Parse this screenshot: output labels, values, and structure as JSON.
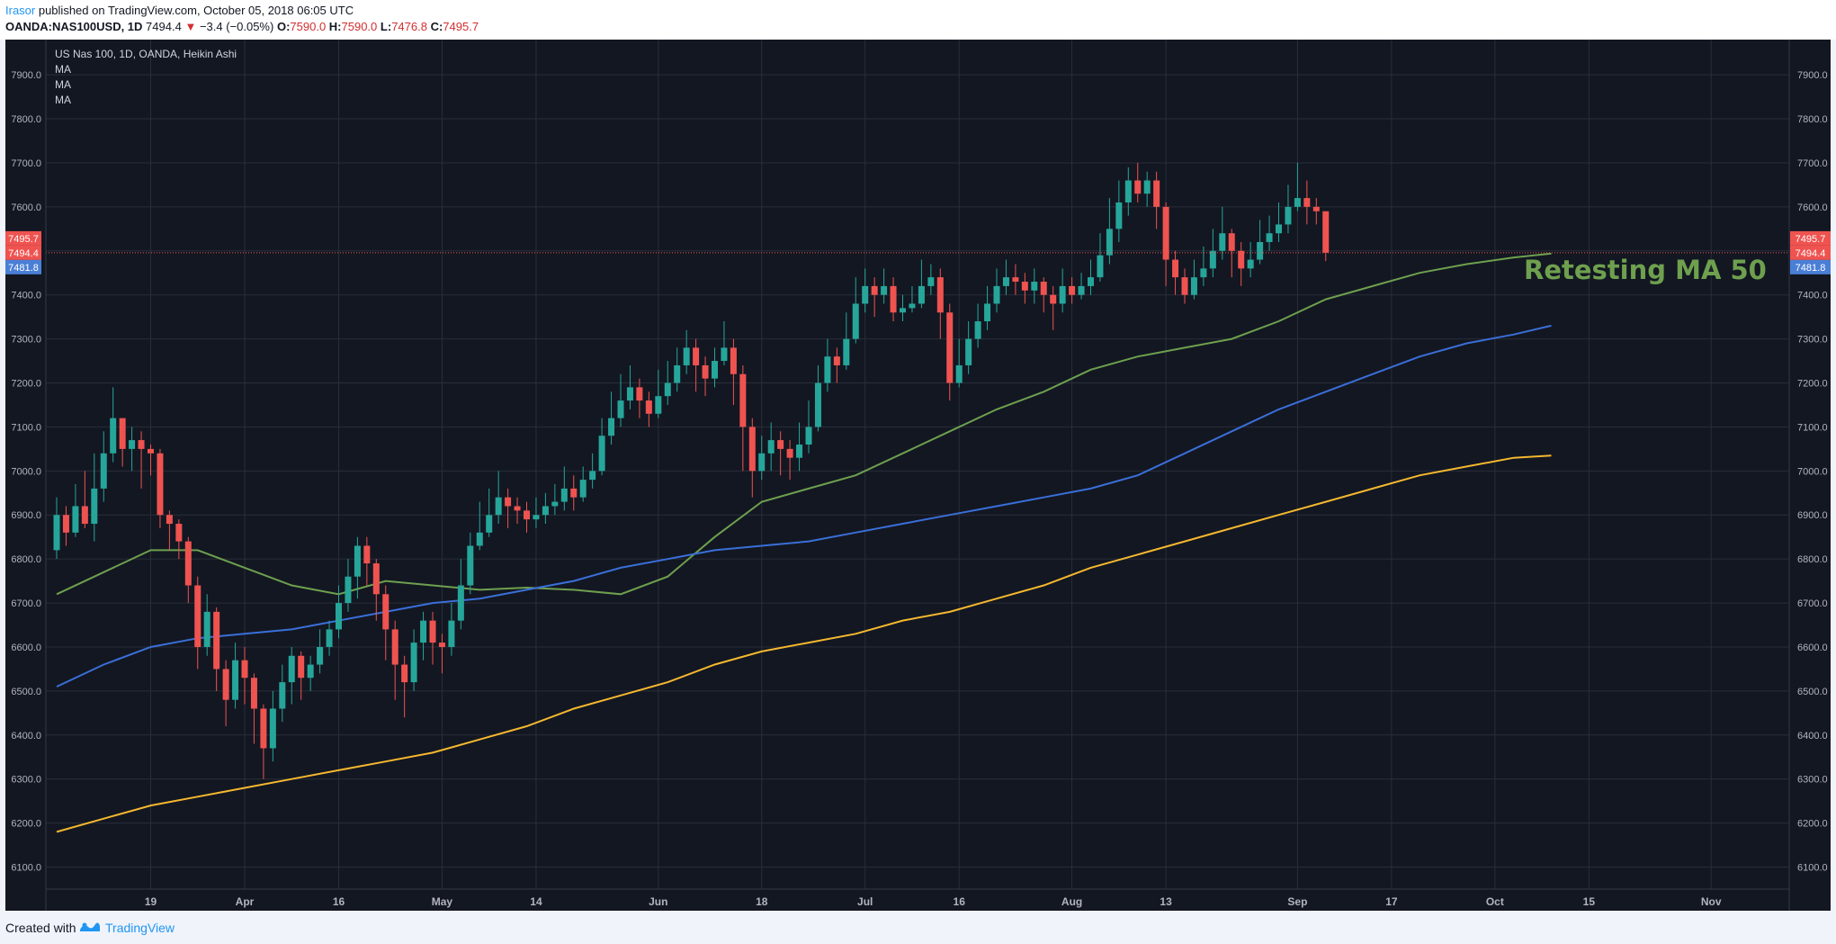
{
  "header": {
    "author": "Irasor",
    "published_text": " published on TradingView.com, October 05, 2018 06:05 UTC",
    "symbol": "OANDA:NAS100USD, 1D",
    "last": "7494.4",
    "change": "−3.4 (−0.05%)",
    "o_label": "O:",
    "o_value": "7590.0",
    "h_label": "H:",
    "h_value": "7590.0",
    "l_label": "L:",
    "l_value": "7476.8",
    "c_label": "C:",
    "c_value": "7495.7"
  },
  "legend": {
    "title": "US Nas 100, 1D, OANDA, Heikin Ashi",
    "ma1": "MA",
    "ma2": "MA",
    "ma3": "MA"
  },
  "annotation": {
    "text": "Retesting MA 50",
    "color": "#6ea04e"
  },
  "footer": {
    "created_with": "Created with",
    "brand": "TradingView"
  },
  "colors": {
    "background": "#131722",
    "grid": "#2a2e39",
    "up": "#26a69a",
    "down": "#ef5350",
    "ma50": "#6ea04e",
    "ma100": "#3a6fd8",
    "ma200": "#f5b82e",
    "axis_text": "#b2b5be",
    "price_line": "#ef5350",
    "tag_blue": "#4a7fd6"
  },
  "chart_data": {
    "type": "candlestick",
    "chart_style": "Heikin Ashi",
    "title": "US Nas 100, 1D, OANDA, Heikin Ashi",
    "ylim": [
      6050,
      7980
    ],
    "y_ticks": [
      "6100.0",
      "6200.0",
      "6300.0",
      "6400.0",
      "6500.0",
      "6600.0",
      "6700.0",
      "6800.0",
      "6900.0",
      "7000.0",
      "7100.0",
      "7200.0",
      "7300.0",
      "7400.0",
      "7500.0",
      "7600.0",
      "7700.0",
      "7800.0",
      "7900.0"
    ],
    "x_ticks": [
      {
        "label": "19",
        "index": 10
      },
      {
        "label": "Apr",
        "index": 20
      },
      {
        "label": "16",
        "index": 30
      },
      {
        "label": "May",
        "index": 41
      },
      {
        "label": "14",
        "index": 51
      },
      {
        "label": "Jun",
        "index": 64
      },
      {
        "label": "18",
        "index": 75
      },
      {
        "label": "Jul",
        "index": 86
      },
      {
        "label": "16",
        "index": 96
      },
      {
        "label": "Aug",
        "index": 108
      },
      {
        "label": "13",
        "index": 118
      },
      {
        "label": "Sep",
        "index": 132
      },
      {
        "label": "17",
        "index": 142
      },
      {
        "label": "Oct",
        "index": 153
      },
      {
        "label": "15",
        "index": 163
      },
      {
        "label": "Nov",
        "index": 176
      }
    ],
    "x_max_index": 186,
    "candles": [
      [
        6820,
        6900,
        6940,
        6800
      ],
      [
        6900,
        6860,
        6920,
        6830
      ],
      [
        6860,
        6920,
        6970,
        6850
      ],
      [
        6920,
        6880,
        7000,
        6870
      ],
      [
        6880,
        6960,
        7040,
        6840
      ],
      [
        6960,
        7040,
        7090,
        6930
      ],
      [
        7040,
        7120,
        7190,
        7020
      ],
      [
        7120,
        7050,
        7110,
        7010
      ],
      [
        7050,
        7070,
        7100,
        7000
      ],
      [
        7070,
        7050,
        7090,
        6960
      ],
      [
        7050,
        7040,
        7060,
        6990
      ],
      [
        7040,
        6900,
        7050,
        6870
      ],
      [
        6900,
        6880,
        6910,
        6820
      ],
      [
        6880,
        6840,
        6890,
        6800
      ],
      [
        6840,
        6740,
        6850,
        6700
      ],
      [
        6740,
        6600,
        6760,
        6550
      ],
      [
        6600,
        6680,
        6720,
        6580
      ],
      [
        6680,
        6550,
        6690,
        6500
      ],
      [
        6550,
        6480,
        6570,
        6420
      ],
      [
        6480,
        6570,
        6610,
        6460
      ],
      [
        6570,
        6530,
        6600,
        6470
      ],
      [
        6530,
        6460,
        6540,
        6380
      ],
      [
        6460,
        6370,
        6470,
        6300
      ],
      [
        6370,
        6460,
        6500,
        6340
      ],
      [
        6460,
        6520,
        6560,
        6430
      ],
      [
        6520,
        6580,
        6600,
        6470
      ],
      [
        6580,
        6530,
        6590,
        6480
      ],
      [
        6530,
        6560,
        6580,
        6500
      ],
      [
        6560,
        6600,
        6640,
        6540
      ],
      [
        6600,
        6640,
        6660,
        6580
      ],
      [
        6640,
        6700,
        6740,
        6620
      ],
      [
        6700,
        6760,
        6800,
        6680
      ],
      [
        6760,
        6830,
        6850,
        6710
      ],
      [
        6830,
        6790,
        6850,
        6740
      ],
      [
        6790,
        6720,
        6800,
        6660
      ],
      [
        6720,
        6640,
        6740,
        6570
      ],
      [
        6640,
        6560,
        6660,
        6480
      ],
      [
        6560,
        6520,
        6580,
        6440
      ],
      [
        6520,
        6610,
        6640,
        6500
      ],
      [
        6610,
        6660,
        6680,
        6570
      ],
      [
        6660,
        6610,
        6680,
        6560
      ],
      [
        6610,
        6600,
        6630,
        6540
      ],
      [
        6600,
        6660,
        6700,
        6580
      ],
      [
        6660,
        6740,
        6800,
        6640
      ],
      [
        6740,
        6830,
        6860,
        6720
      ],
      [
        6830,
        6860,
        6930,
        6820
      ],
      [
        6860,
        6900,
        6960,
        6850
      ],
      [
        6900,
        6940,
        7000,
        6880
      ],
      [
        6940,
        6920,
        6960,
        6870
      ],
      [
        6920,
        6910,
        6940,
        6880
      ],
      [
        6910,
        6890,
        6930,
        6860
      ],
      [
        6890,
        6900,
        6940,
        6870
      ],
      [
        6900,
        6920,
        6950,
        6880
      ],
      [
        6920,
        6930,
        6970,
        6900
      ],
      [
        6930,
        6960,
        7010,
        6910
      ],
      [
        6960,
        6940,
        6990,
        6910
      ],
      [
        6940,
        6980,
        7010,
        6930
      ],
      [
        6980,
        7000,
        7040,
        6960
      ],
      [
        7000,
        7080,
        7120,
        6990
      ],
      [
        7080,
        7120,
        7180,
        7060
      ],
      [
        7120,
        7160,
        7220,
        7100
      ],
      [
        7160,
        7190,
        7240,
        7140
      ],
      [
        7190,
        7160,
        7210,
        7120
      ],
      [
        7160,
        7130,
        7180,
        7100
      ],
      [
        7130,
        7170,
        7230,
        7120
      ],
      [
        7170,
        7200,
        7250,
        7150
      ],
      [
        7200,
        7240,
        7280,
        7180
      ],
      [
        7240,
        7280,
        7320,
        7220
      ],
      [
        7280,
        7240,
        7300,
        7180
      ],
      [
        7240,
        7210,
        7260,
        7170
      ],
      [
        7210,
        7250,
        7280,
        7190
      ],
      [
        7250,
        7280,
        7340,
        7240
      ],
      [
        7280,
        7220,
        7300,
        7150
      ],
      [
        7220,
        7100,
        7240,
        7000
      ],
      [
        7100,
        7000,
        7120,
        6940
      ],
      [
        7000,
        7040,
        7080,
        6980
      ],
      [
        7040,
        7070,
        7110,
        7000
      ],
      [
        7070,
        7050,
        7090,
        6990
      ],
      [
        7050,
        7030,
        7070,
        6980
      ],
      [
        7030,
        7060,
        7110,
        7000
      ],
      [
        7060,
        7100,
        7160,
        7040
      ],
      [
        7100,
        7200,
        7240,
        7090
      ],
      [
        7200,
        7260,
        7300,
        7180
      ],
      [
        7260,
        7240,
        7280,
        7200
      ],
      [
        7240,
        7300,
        7360,
        7230
      ],
      [
        7300,
        7380,
        7440,
        7290
      ],
      [
        7380,
        7420,
        7460,
        7360
      ],
      [
        7420,
        7400,
        7440,
        7350
      ],
      [
        7400,
        7420,
        7460,
        7380
      ],
      [
        7420,
        7360,
        7440,
        7340
      ],
      [
        7360,
        7370,
        7400,
        7340
      ],
      [
        7370,
        7380,
        7420,
        7360
      ],
      [
        7380,
        7420,
        7480,
        7370
      ],
      [
        7420,
        7440,
        7470,
        7400
      ],
      [
        7440,
        7360,
        7460,
        7300
      ],
      [
        7360,
        7200,
        7380,
        7160
      ],
      [
        7200,
        7240,
        7300,
        7190
      ],
      [
        7240,
        7300,
        7340,
        7220
      ],
      [
        7300,
        7340,
        7380,
        7280
      ],
      [
        7340,
        7380,
        7420,
        7320
      ],
      [
        7380,
        7420,
        7460,
        7360
      ],
      [
        7420,
        7440,
        7480,
        7400
      ],
      [
        7440,
        7430,
        7470,
        7400
      ],
      [
        7430,
        7410,
        7450,
        7380
      ],
      [
        7410,
        7430,
        7460,
        7380
      ],
      [
        7430,
        7400,
        7440,
        7360
      ],
      [
        7400,
        7380,
        7420,
        7320
      ],
      [
        7380,
        7420,
        7460,
        7360
      ],
      [
        7420,
        7400,
        7440,
        7380
      ],
      [
        7400,
        7420,
        7450,
        7390
      ],
      [
        7420,
        7440,
        7480,
        7400
      ],
      [
        7440,
        7490,
        7540,
        7430
      ],
      [
        7490,
        7550,
        7620,
        7470
      ],
      [
        7550,
        7610,
        7660,
        7520
      ],
      [
        7610,
        7660,
        7690,
        7580
      ],
      [
        7660,
        7630,
        7700,
        7610
      ],
      [
        7630,
        7660,
        7680,
        7600
      ],
      [
        7660,
        7600,
        7680,
        7550
      ],
      [
        7600,
        7480,
        7610,
        7420
      ],
      [
        7480,
        7440,
        7500,
        7400
      ],
      [
        7440,
        7400,
        7460,
        7380
      ],
      [
        7400,
        7440,
        7480,
        7390
      ],
      [
        7440,
        7460,
        7510,
        7420
      ],
      [
        7460,
        7500,
        7550,
        7440
      ],
      [
        7500,
        7540,
        7600,
        7480
      ],
      [
        7540,
        7500,
        7550,
        7440
      ],
      [
        7500,
        7460,
        7520,
        7420
      ],
      [
        7460,
        7480,
        7520,
        7440
      ],
      [
        7480,
        7520,
        7570,
        7470
      ],
      [
        7520,
        7540,
        7580,
        7500
      ],
      [
        7540,
        7560,
        7610,
        7520
      ],
      [
        7560,
        7600,
        7650,
        7540
      ],
      [
        7600,
        7620,
        7700,
        7590
      ],
      [
        7620,
        7600,
        7660,
        7560
      ],
      [
        7600,
        7590,
        7620,
        7560
      ],
      [
        7590,
        7495.7,
        7590,
        7476.8
      ]
    ],
    "candles_format": "[open, close, high, low] per trading day",
    "series": [
      {
        "name": "MA",
        "color": "#6ea04e",
        "points": [
          [
            0,
            6720
          ],
          [
            5,
            6770
          ],
          [
            10,
            6820
          ],
          [
            15,
            6820
          ],
          [
            20,
            6780
          ],
          [
            25,
            6740
          ],
          [
            30,
            6720
          ],
          [
            35,
            6750
          ],
          [
            40,
            6740
          ],
          [
            45,
            6730
          ],
          [
            50,
            6735
          ],
          [
            55,
            6730
          ],
          [
            60,
            6720
          ],
          [
            65,
            6760
          ],
          [
            70,
            6850
          ],
          [
            75,
            6930
          ],
          [
            80,
            6960
          ],
          [
            85,
            6990
          ],
          [
            90,
            7040
          ],
          [
            95,
            7090
          ],
          [
            100,
            7140
          ],
          [
            105,
            7180
          ],
          [
            110,
            7230
          ],
          [
            115,
            7260
          ],
          [
            120,
            7280
          ],
          [
            125,
            7300
          ],
          [
            130,
            7340
          ],
          [
            135,
            7390
          ],
          [
            140,
            7420
          ],
          [
            145,
            7450
          ],
          [
            150,
            7470
          ],
          [
            155,
            7485
          ],
          [
            159,
            7494
          ]
        ]
      },
      {
        "name": "MA",
        "color": "#3a6fd8",
        "points": [
          [
            0,
            6510
          ],
          [
            5,
            6560
          ],
          [
            10,
            6600
          ],
          [
            15,
            6620
          ],
          [
            20,
            6630
          ],
          [
            25,
            6640
          ],
          [
            30,
            6660
          ],
          [
            35,
            6680
          ],
          [
            40,
            6700
          ],
          [
            45,
            6710
          ],
          [
            50,
            6730
          ],
          [
            55,
            6750
          ],
          [
            60,
            6780
          ],
          [
            65,
            6800
          ],
          [
            70,
            6820
          ],
          [
            75,
            6830
          ],
          [
            80,
            6840
          ],
          [
            85,
            6860
          ],
          [
            90,
            6880
          ],
          [
            95,
            6900
          ],
          [
            100,
            6920
          ],
          [
            105,
            6940
          ],
          [
            110,
            6960
          ],
          [
            115,
            6990
          ],
          [
            120,
            7040
          ],
          [
            125,
            7090
          ],
          [
            130,
            7140
          ],
          [
            135,
            7180
          ],
          [
            140,
            7220
          ],
          [
            145,
            7260
          ],
          [
            150,
            7290
          ],
          [
            155,
            7310
          ],
          [
            159,
            7330
          ]
        ]
      },
      {
        "name": "MA",
        "color": "#f5b82e",
        "points": [
          [
            0,
            6180
          ],
          [
            5,
            6210
          ],
          [
            10,
            6240
          ],
          [
            15,
            6260
          ],
          [
            20,
            6280
          ],
          [
            25,
            6300
          ],
          [
            30,
            6320
          ],
          [
            35,
            6340
          ],
          [
            40,
            6360
          ],
          [
            45,
            6390
          ],
          [
            50,
            6420
          ],
          [
            55,
            6460
          ],
          [
            60,
            6490
          ],
          [
            65,
            6520
          ],
          [
            70,
            6560
          ],
          [
            75,
            6590
          ],
          [
            80,
            6610
          ],
          [
            85,
            6630
          ],
          [
            90,
            6660
          ],
          [
            95,
            6680
          ],
          [
            100,
            6710
          ],
          [
            105,
            6740
          ],
          [
            110,
            6780
          ],
          [
            115,
            6810
          ],
          [
            120,
            6840
          ],
          [
            125,
            6870
          ],
          [
            130,
            6900
          ],
          [
            135,
            6930
          ],
          [
            140,
            6960
          ],
          [
            145,
            6990
          ],
          [
            150,
            7010
          ],
          [
            155,
            7030
          ],
          [
            159,
            7035
          ]
        ]
      }
    ],
    "price_tags": [
      {
        "label": "7495.7",
        "value": 7495.7,
        "color": "#ef5350"
      },
      {
        "label": "7494.4",
        "value": 7494.4,
        "color": "#ef5350"
      },
      {
        "label": "7481.8",
        "value": 7481.8,
        "color": "#4a7fd6"
      }
    ],
    "price_line": 7495.7
  }
}
